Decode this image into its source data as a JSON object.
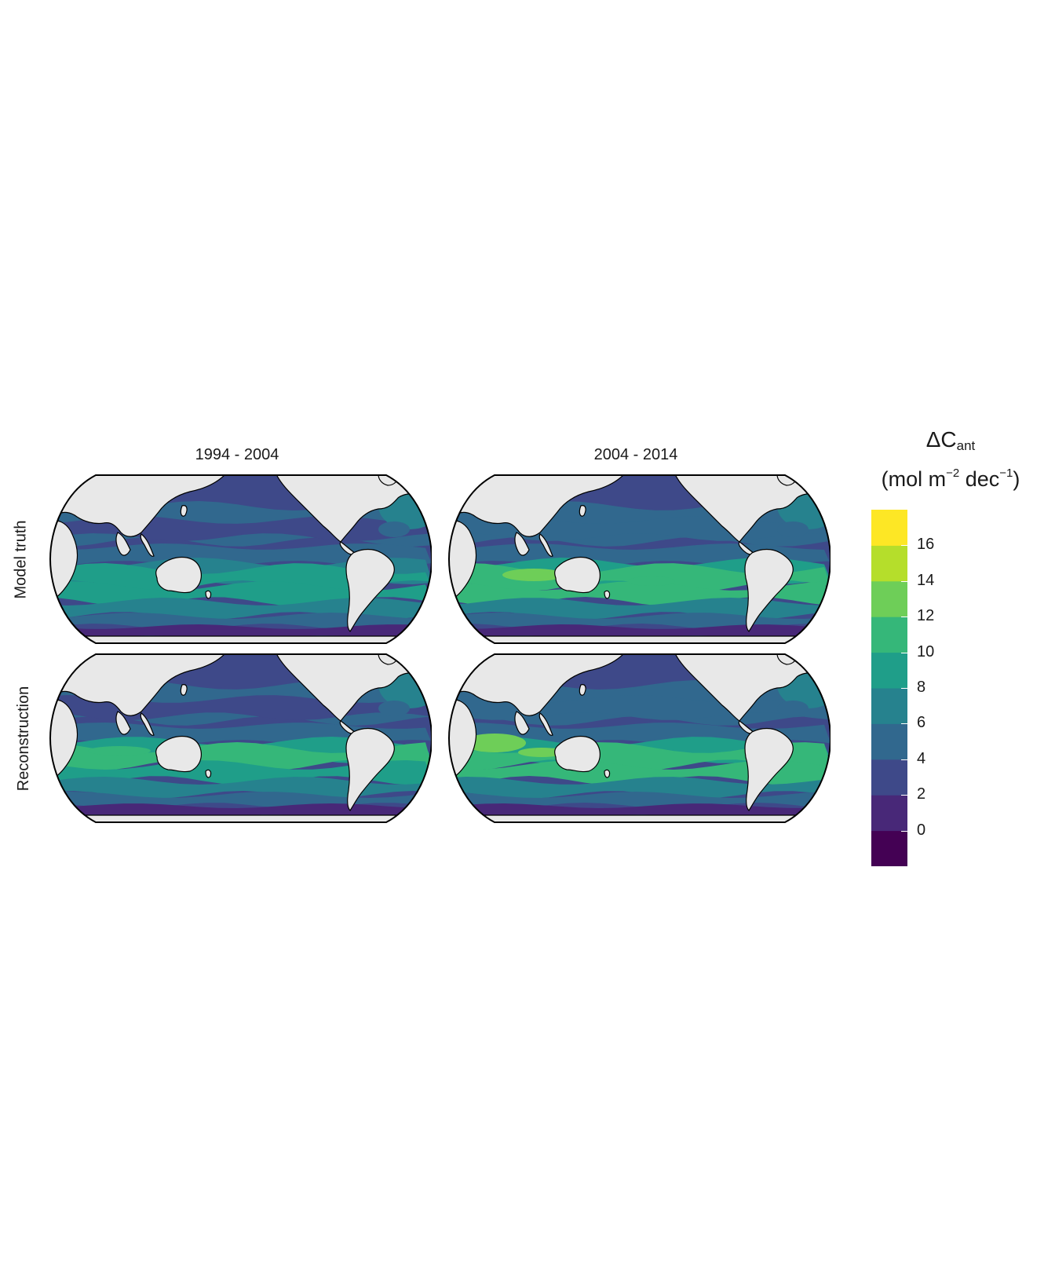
{
  "panels": {
    "columns": [
      "1994 - 2004",
      "2004 - 2014"
    ],
    "rows": [
      "Model truth",
      "Reconstruction"
    ]
  },
  "legend": {
    "title_symbol": "ΔC",
    "title_subscript": "ant",
    "units_text": "(mol m",
    "units_exp1": "−2",
    "units_mid": " dec",
    "units_exp2": "−1",
    "units_close": ")",
    "ticks": [
      "0",
      "2",
      "4",
      "6",
      "8",
      "10",
      "12",
      "14",
      "16"
    ]
  },
  "colors": {
    "bins": [
      "#440154",
      "#482878",
      "#3e4989",
      "#31688e",
      "#26828e",
      "#1f9e89",
      "#35b779",
      "#6ece58",
      "#b5de2b",
      "#fde725"
    ],
    "land": "#e8e8e8",
    "coastline": "#000000"
  },
  "chart_data": {
    "type": "heatmap",
    "variable": "ΔC_ant",
    "units": "mol m-2 dec-1",
    "color_scale": "viridis (binned, 2 mol m-2 dec-1 steps)",
    "scale_range": [
      -2,
      18
    ],
    "panels": [
      {
        "row": "Model truth",
        "column": "1994 - 2004",
        "approx_max_band": "8-10",
        "dominant_band": "2-6"
      },
      {
        "row": "Model truth",
        "column": "2004 - 2014",
        "approx_max_band": "12-14",
        "dominant_band": "4-8"
      },
      {
        "row": "Reconstruction",
        "column": "1994 - 2004",
        "approx_max_band": "10-12",
        "dominant_band": "2-6"
      },
      {
        "row": "Reconstruction",
        "column": "2004 - 2014",
        "approx_max_band": "12-14",
        "dominant_band": "4-8"
      }
    ]
  }
}
